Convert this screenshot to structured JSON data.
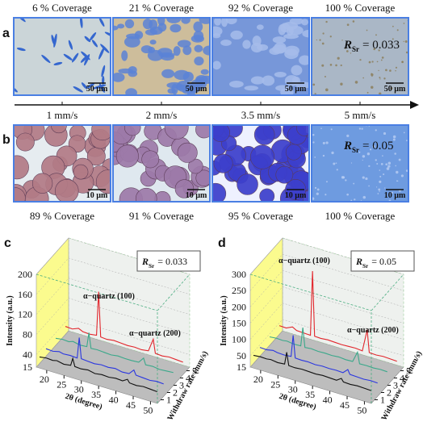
{
  "panels": {
    "a": {
      "label": "a",
      "captions": [
        "6 % Coverage",
        "21 % Coverage",
        "92 % Coverage",
        "100 % Coverage"
      ],
      "scale_bar": "50 µm",
      "ratio": {
        "symbol": "R",
        "sub": "Sr",
        "value": "= 0.033"
      },
      "rates": [
        "1 mm/s",
        "2 mm/s",
        "3.5 mm/s",
        "5 mm/s"
      ]
    },
    "b": {
      "label": "b",
      "captions": [
        "89 % Coverage",
        "91 % Coverage",
        "95 % Coverage",
        "100 % Coverage"
      ],
      "scale_bar": "10 µm",
      "ratio": {
        "symbol": "R",
        "sub": "Sr",
        "value": "= 0.05"
      }
    }
  },
  "chart_data": [
    {
      "type": "line3d",
      "label": "c",
      "y_label": "Intensity (a.u.)",
      "x_label": "2θ (degree)",
      "z_label": "Withdraw rate (mm/s)",
      "ratio": {
        "symbol": "R",
        "sub": "Sr",
        "value": "= 0.033"
      },
      "annotations": [
        "α−quartz (100)",
        "α−quartz (200)"
      ],
      "xlim": [
        17,
        52
      ],
      "xticks": [
        20,
        25,
        30,
        35,
        40,
        45,
        50
      ],
      "ylim": [
        15,
        200
      ],
      "yticks": [
        15,
        40,
        80,
        120,
        160,
        200
      ],
      "zlim": [
        0.5,
        5.5
      ],
      "zticks": [
        1,
        2,
        3,
        4,
        5
      ],
      "x": [
        17,
        19,
        20.8,
        22,
        24,
        26,
        26.6,
        27.2,
        29,
        31,
        33,
        35,
        37,
        39,
        41,
        42.4,
        43,
        45,
        47,
        49,
        51
      ],
      "series": [
        {
          "z": 1,
          "color": "#111111",
          "values": [
            28,
            30,
            29,
            31,
            28,
            30,
            45,
            30,
            29,
            31,
            28,
            30,
            29,
            31,
            30,
            36,
            30,
            29,
            31,
            30,
            29
          ]
        },
        {
          "z": 2,
          "color": "#2a36e0",
          "values": [
            30,
            29,
            32,
            30,
            31,
            30,
            72,
            31,
            30,
            29,
            31,
            30,
            32,
            29,
            30,
            40,
            31,
            30,
            29,
            31,
            30
          ]
        },
        {
          "z": 3.5,
          "color": "#3aa88a",
          "values": [
            29,
            31,
            30,
            33,
            30,
            31,
            60,
            30,
            31,
            30,
            29,
            31,
            30,
            30,
            31,
            42,
            30,
            31,
            29,
            30,
            31
          ]
        },
        {
          "z": 5,
          "color": "#e2262c",
          "values": [
            31,
            30,
            35,
            31,
            30,
            32,
            120,
            31,
            30,
            32,
            31,
            30,
            31,
            30,
            32,
            58,
            31,
            30,
            32,
            31,
            30
          ]
        }
      ]
    },
    {
      "type": "line3d",
      "label": "d",
      "y_label": "Intensity (a.u.)",
      "x_label": "2θ (degree)",
      "z_label": "Withdraw rate (mm/s)",
      "ratio": {
        "symbol": "R",
        "sub": "Sr",
        "value": "= 0.05"
      },
      "annotations": [
        "α−quartz (100)",
        "α−quartz (200)"
      ],
      "xlim": [
        17,
        52
      ],
      "xticks": [
        20,
        25,
        30,
        35,
        40,
        45,
        50
      ],
      "ylim": [
        15,
        300
      ],
      "yticks": [
        15,
        50,
        100,
        150,
        200,
        250,
        300
      ],
      "zlim": [
        0.5,
        5.5
      ],
      "zticks": [
        1,
        2,
        3,
        4,
        5
      ],
      "x": [
        17,
        19,
        20.8,
        22,
        24,
        26,
        26.6,
        27.2,
        29,
        31,
        33,
        35,
        37,
        39,
        41,
        42.4,
        43,
        45,
        47,
        49,
        51
      ],
      "series": [
        {
          "z": 1,
          "color": "#111111",
          "values": [
            40,
            42,
            41,
            43,
            40,
            42,
            80,
            41,
            40,
            42,
            41,
            40,
            42,
            41,
            40,
            50,
            41,
            40,
            42,
            41,
            40
          ]
        },
        {
          "z": 2,
          "color": "#2a36e0",
          "values": [
            42,
            41,
            45,
            42,
            41,
            43,
            110,
            42,
            41,
            42,
            40,
            42,
            41,
            42,
            41,
            55,
            42,
            41,
            40,
            42,
            41
          ]
        },
        {
          "z": 3.5,
          "color": "#3aa88a",
          "values": [
            41,
            43,
            42,
            44,
            41,
            42,
            100,
            41,
            43,
            41,
            42,
            41,
            43,
            41,
            42,
            75,
            41,
            42,
            41,
            43,
            42
          ]
        },
        {
          "z": 5,
          "color": "#e2262c",
          "values": [
            42,
            41,
            50,
            43,
            42,
            41,
            240,
            42,
            41,
            43,
            42,
            41,
            42,
            43,
            41,
            110,
            42,
            41,
            43,
            42,
            41
          ]
        }
      ]
    }
  ]
}
